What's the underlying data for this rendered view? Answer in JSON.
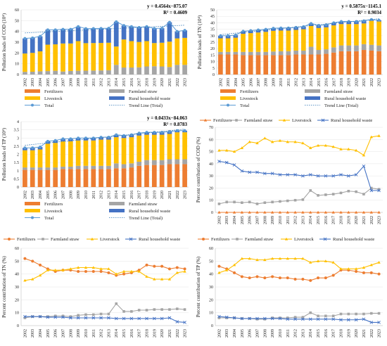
{
  "years": [
    "2002",
    "2003",
    "2004",
    "2005",
    "2006",
    "2007",
    "2008",
    "2009",
    "2010",
    "2011",
    "2012",
    "2013",
    "2014",
    "2015",
    "2016",
    "2017",
    "2018",
    "2019",
    "2020",
    "2021",
    "2022",
    "2023"
  ],
  "colors": {
    "fertilizers": "#ED7D31",
    "straw": "#A5A5A5",
    "livestock": "#FFC000",
    "rural": "#4472C4",
    "total": "#5B9BD5",
    "trend": "#2E75B6"
  },
  "chart_data": [
    {
      "id": "cod_loads",
      "type": "bar",
      "stacked": true,
      "ylabel": "Pollution loads of COD (10⁴)",
      "ylim": [
        0,
        60
      ],
      "yticks": [
        0,
        10,
        20,
        30,
        40,
        50,
        60
      ],
      "equation": "y = 0.4564x−875.07",
      "r2": "R² = 0.4609",
      "series": [
        {
          "name": "Fertilizers",
          "values": [
            0,
            0,
            0,
            0,
            0,
            0,
            0,
            0,
            0,
            0,
            0,
            0,
            0,
            0,
            0,
            0,
            0,
            0,
            0,
            0,
            0,
            0
          ]
        },
        {
          "name": "Farmland straw",
          "values": [
            2.5,
            2.6,
            3.0,
            3.2,
            3.5,
            2.8,
            3.3,
            3.5,
            3.6,
            3.7,
            3.8,
            4.0,
            9.0,
            6.5,
            6.5,
            6.7,
            7.5,
            7.7,
            7.5,
            7.0,
            9.0,
            9.0
          ]
        },
        {
          "name": "Livestock",
          "values": [
            17,
            17.5,
            18.5,
            24.5,
            24.5,
            26,
            25.5,
            27.5,
            25.5,
            25.5,
            25.5,
            25.5,
            17,
            26,
            24.5,
            23.5,
            23.5,
            21.5,
            22,
            23.5,
            24.5,
            25
          ]
        },
        {
          "name": "Rural household waste",
          "values": [
            14,
            14,
            14,
            14,
            13.5,
            13.5,
            13.5,
            13.5,
            13.5,
            13.5,
            13.5,
            13.5,
            23,
            13,
            13.5,
            13.5,
            13.5,
            13.5,
            13.5,
            18,
            6.5,
            7
          ]
        }
      ],
      "total": [
        33.5,
        34,
        35.5,
        41.5,
        41.5,
        42,
        42,
        44.5,
        42.6,
        42.7,
        42.8,
        43,
        49,
        45.5,
        44.5,
        43.7,
        44.5,
        42.7,
        43,
        48.5,
        40,
        41
      ],
      "legend": [
        "Fertilizers",
        "Farmland straw",
        "Livestock",
        "Rural household waste",
        "Total",
        "Trend Line (Total)"
      ]
    },
    {
      "id": "tn_loads",
      "type": "bar",
      "stacked": true,
      "ylabel": "Pollution loads of TN (10⁴)",
      "ylim": [
        0,
        50
      ],
      "yticks": [
        0,
        5,
        10,
        15,
        20,
        25,
        30,
        35,
        40,
        45,
        50
      ],
      "equation": "y = 0.5875x−1145.1",
      "r2": "R² = 0.9034",
      "series": [
        {
          "name": "Fertilizers",
          "values": [
            15.5,
            15.5,
            15.5,
            15,
            15,
            15,
            15,
            15,
            15,
            15,
            15.5,
            15.5,
            15.5,
            15.5,
            16,
            17,
            18,
            18,
            18,
            19,
            18.5,
            18
          ]
        },
        {
          "name": "Farmland straw",
          "values": [
            2,
            2,
            2,
            2.5,
            2.5,
            2.5,
            2.5,
            2.8,
            3,
            3,
            3,
            3,
            6,
            3.5,
            3.5,
            4,
            4.5,
            4.5,
            4.5,
            4.5,
            4.5,
            4.5
          ]
        },
        {
          "name": "Livestock",
          "values": [
            10.5,
            10.5,
            11,
            14,
            14.5,
            15,
            15.5,
            16,
            16,
            16,
            16,
            16.5,
            16,
            17,
            17,
            17,
            16.5,
            16.5,
            16.5,
            16,
            18.5,
            18.5
          ]
        },
        {
          "name": "Rural household waste",
          "values": [
            2,
            2,
            2,
            2,
            2,
            2,
            2,
            2,
            2,
            2,
            2,
            2,
            2,
            2,
            2,
            2,
            2,
            2,
            2,
            2,
            1,
            1
          ]
        }
      ],
      "total": [
        30,
        30,
        30.5,
        33.5,
        34,
        34.5,
        35,
        35.8,
        36,
        36,
        36.5,
        37,
        39.5,
        38,
        38.5,
        40,
        41,
        41,
        41,
        41.5,
        42.5,
        42
      ],
      "legend": [
        "Fertilizers",
        "Farmland straw",
        "Livestock",
        "Rural household waste",
        "Total",
        "Trend Line (Total)"
      ]
    },
    {
      "id": "tp_loads",
      "type": "bar",
      "stacked": true,
      "ylabel": "Pollution loads of TP (10⁴)",
      "ylim": [
        0,
        4
      ],
      "yticks": [
        0,
        0.5,
        1,
        1.5,
        2,
        2.5,
        3,
        3.5,
        4
      ],
      "equation": "y = 0.0433x−84.063",
      "r2": "R² = 0.8783",
      "series": [
        {
          "name": "Fertilizers",
          "values": [
            1.05,
            1.05,
            1.05,
            1.05,
            1.05,
            1.1,
            1.1,
            1.1,
            1.1,
            1.1,
            1.1,
            1.1,
            1.15,
            1.15,
            1.2,
            1.3,
            1.35,
            1.35,
            1.35,
            1.4,
            1.4,
            1.4
          ]
        },
        {
          "name": "Farmland straw",
          "values": [
            0.15,
            0.15,
            0.15,
            0.15,
            0.15,
            0.15,
            0.15,
            0.2,
            0.2,
            0.2,
            0.2,
            0.2,
            0.3,
            0.25,
            0.25,
            0.25,
            0.3,
            0.3,
            0.3,
            0.3,
            0.3,
            0.3
          ]
        },
        {
          "name": "Livestock",
          "values": [
            1.05,
            1.05,
            1.1,
            1.45,
            1.5,
            1.55,
            1.55,
            1.55,
            1.55,
            1.55,
            1.6,
            1.6,
            1.6,
            1.6,
            1.6,
            1.6,
            1.55,
            1.55,
            1.55,
            1.55,
            1.65,
            1.65
          ]
        },
        {
          "name": "Rural household waste",
          "values": [
            0.15,
            0.15,
            0.15,
            0.15,
            0.15,
            0.15,
            0.15,
            0.15,
            0.15,
            0.15,
            0.15,
            0.15,
            0.15,
            0.15,
            0.15,
            0.15,
            0.15,
            0.15,
            0.15,
            0.15,
            0.1,
            0.1
          ]
        }
      ],
      "total": [
        2.4,
        2.4,
        2.45,
        2.8,
        2.85,
        2.95,
        2.95,
        3.0,
        3.0,
        3.0,
        3.05,
        3.05,
        3.2,
        3.15,
        3.2,
        3.3,
        3.35,
        3.35,
        3.35,
        3.4,
        3.45,
        3.45
      ],
      "legend": [
        "Fertilizers",
        "Farmland straw",
        "Livestock",
        "Rural household waste",
        "Total",
        "Trend Line (Total)"
      ]
    },
    {
      "id": "cod_pct",
      "type": "line",
      "ylabel": "Percent contribution of COD (%)",
      "ylim": [
        0,
        70
      ],
      "yticks": [
        0,
        10,
        20,
        30,
        40,
        50,
        60,
        70
      ],
      "legend_position": "top",
      "series": [
        {
          "name": "Fertilizers",
          "values": [
            0,
            0,
            0,
            0,
            0,
            0,
            0,
            0,
            0,
            0,
            0,
            0,
            0,
            0,
            0,
            0,
            0,
            0,
            0,
            0,
            0,
            0
          ]
        },
        {
          "name": "Farmland straw",
          "values": [
            7,
            8.5,
            8.5,
            8,
            8.5,
            7,
            8,
            8.5,
            9,
            9.5,
            10,
            10.5,
            18,
            14,
            14.5,
            15,
            16,
            17.5,
            17,
            15,
            20,
            19
          ]
        },
        {
          "name": "Liverstock",
          "values": [
            51,
            51,
            50,
            53,
            58,
            57,
            61,
            58,
            59,
            58,
            58,
            57,
            53,
            55,
            55,
            54,
            52,
            52,
            51,
            47,
            62,
            63
          ]
        },
        {
          "name": "Rural household waste",
          "values": [
            42,
            41,
            39,
            34,
            33,
            33,
            32,
            32,
            31,
            31,
            31,
            30,
            31,
            30,
            30,
            30,
            31,
            30,
            31,
            38,
            18,
            18
          ]
        }
      ]
    },
    {
      "id": "tn_pct",
      "type": "line",
      "ylabel": "Percent contribution of TN (%)",
      "ylim": [
        0,
        60
      ],
      "yticks": [
        0,
        10,
        20,
        30,
        40,
        50,
        60
      ],
      "legend_position": "top",
      "series": [
        {
          "name": "Fertilizers",
          "values": [
            52,
            50,
            47,
            44,
            42,
            43,
            43,
            42,
            42,
            42,
            42,
            41,
            39,
            40,
            41,
            43,
            47,
            46,
            46,
            44,
            45,
            44
          ]
        },
        {
          "name": "Farmland straw",
          "values": [
            6,
            7,
            7,
            7,
            7.5,
            7.5,
            7,
            8,
            8.5,
            8.5,
            9,
            9,
            17,
            11,
            11,
            12,
            12,
            12.5,
            12.5,
            12.5,
            13,
            12.5
          ]
        },
        {
          "name": "Liverstock",
          "values": [
            35,
            36,
            39,
            43,
            43,
            43,
            44,
            45,
            45,
            45,
            44,
            44,
            40,
            42,
            42,
            42,
            38,
            36,
            36,
            36,
            41,
            42
          ]
        },
        {
          "name": "Rural household waste",
          "values": [
            7,
            7,
            7,
            6.5,
            6.5,
            6.5,
            6,
            6,
            6,
            6,
            6,
            6,
            5.5,
            5.5,
            5.5,
            5.5,
            5.5,
            5.5,
            5.5,
            6,
            3,
            2.5
          ]
        }
      ]
    },
    {
      "id": "tp_pct",
      "type": "line",
      "ylabel": "Percent contribution of TP (%)",
      "ylim": [
        0,
        60
      ],
      "yticks": [
        0,
        10,
        20,
        30,
        40,
        50,
        60
      ],
      "legend_position": "top",
      "series": [
        {
          "name": "Fertilizers",
          "values": [
            46,
            44,
            41,
            38,
            37,
            38,
            37,
            38,
            37,
            37,
            36,
            36,
            35,
            37,
            37,
            39,
            43,
            43,
            42,
            41,
            41,
            40
          ]
        },
        {
          "name": "Farmland straw",
          "values": [
            6,
            6,
            6,
            5.5,
            5.5,
            5,
            5,
            6,
            6,
            6,
            6.5,
            6.5,
            10,
            7.5,
            7.5,
            7.5,
            9,
            9,
            9,
            9,
            9.5,
            9.5
          ]
        },
        {
          "name": "Liverstock",
          "values": [
            41,
            43,
            47,
            52,
            52,
            51,
            51,
            52,
            52,
            52,
            52,
            52,
            49,
            50,
            50,
            49,
            44,
            44,
            44,
            45,
            47,
            49
          ]
        },
        {
          "name": "Rural household waste",
          "values": [
            7,
            6.5,
            6,
            5.5,
            5.5,
            5.5,
            5.5,
            5.5,
            5.5,
            5,
            5,
            5,
            5,
            5,
            5,
            5,
            4.5,
            4.5,
            4.5,
            5,
            2.5,
            2.5
          ]
        }
      ]
    }
  ]
}
